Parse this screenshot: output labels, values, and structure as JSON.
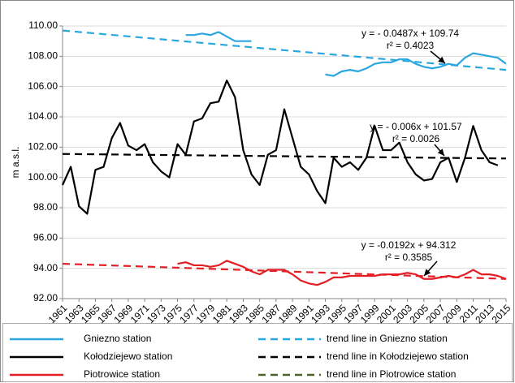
{
  "chart_data": {
    "type": "line",
    "y_label": "m a.s.l.",
    "x": [
      1961,
      1962,
      1963,
      1964,
      1965,
      1966,
      1967,
      1968,
      1969,
      1970,
      1971,
      1972,
      1973,
      1974,
      1975,
      1976,
      1977,
      1978,
      1979,
      1980,
      1981,
      1982,
      1983,
      1984,
      1985,
      1986,
      1987,
      1988,
      1989,
      1990,
      1991,
      1992,
      1993,
      1994,
      1995,
      1996,
      1997,
      1998,
      1999,
      2000,
      2001,
      2002,
      2003,
      2004,
      2005,
      2006,
      2007,
      2008,
      2009,
      2010,
      2011,
      2012,
      2013,
      2014,
      2015
    ],
    "xlim": [
      1961,
      2015
    ],
    "xticks": [
      1961,
      1963,
      1965,
      1967,
      1969,
      1971,
      1973,
      1975,
      1977,
      1979,
      1981,
      1983,
      1985,
      1987,
      1989,
      1991,
      1993,
      1995,
      1997,
      1999,
      2001,
      2003,
      2005,
      2007,
      2009,
      2011,
      2013,
      2015
    ],
    "ylim": [
      92,
      110
    ],
    "yticks": [
      {
        "value": 92,
        "label": "92.00"
      },
      {
        "value": 94,
        "label": "94.00"
      },
      {
        "value": 96,
        "label": "96.00"
      },
      {
        "value": 98,
        "label": "98.00"
      },
      {
        "value": 100,
        "label": "100.00"
      },
      {
        "value": 102,
        "label": "102.00"
      },
      {
        "value": 104,
        "label": "104.00"
      },
      {
        "value": 106,
        "label": "106.00"
      },
      {
        "value": 108,
        "label": "108.00"
      },
      {
        "value": 110,
        "label": "110.00"
      }
    ],
    "grid": true,
    "series": [
      {
        "name": "Gniezno station",
        "color": "#2aa7df",
        "values": [
          null,
          null,
          null,
          null,
          null,
          null,
          null,
          null,
          null,
          null,
          null,
          null,
          null,
          null,
          null,
          109.4,
          109.4,
          109.5,
          109.4,
          109.6,
          109.3,
          109.0,
          109.0,
          109.0,
          null,
          null,
          null,
          null,
          null,
          null,
          null,
          null,
          106.8,
          106.7,
          107.0,
          107.1,
          107.0,
          107.2,
          107.5,
          107.6,
          107.6,
          107.8,
          107.8,
          107.5,
          107.3,
          107.2,
          107.3,
          107.5,
          107.4,
          107.9,
          108.2,
          108.1,
          108.0,
          107.9,
          107.5
        ]
      },
      {
        "name": "Kołodziejewo station",
        "color": "#000000",
        "values": [
          99.5,
          100.7,
          98.1,
          97.6,
          100.5,
          100.7,
          102.6,
          103.6,
          102.1,
          101.8,
          102.2,
          101.0,
          100.4,
          100.0,
          102.2,
          101.5,
          103.7,
          103.9,
          104.9,
          105.0,
          106.4,
          105.3,
          101.8,
          100.2,
          99.5,
          101.5,
          101.8,
          104.5,
          102.6,
          100.7,
          100.2,
          99.1,
          98.3,
          101.3,
          100.7,
          101.0,
          100.5,
          101.3,
          103.4,
          101.8,
          101.8,
          102.3,
          101.0,
          100.2,
          99.8,
          99.9,
          101.0,
          101.3,
          99.7,
          101.3,
          103.4,
          101.8,
          101.0,
          100.8,
          null
        ]
      },
      {
        "name": "Piotrowice station",
        "color": "#e31e24",
        "values": [
          null,
          null,
          null,
          null,
          null,
          null,
          null,
          null,
          null,
          null,
          null,
          null,
          null,
          null,
          94.3,
          94.4,
          94.2,
          94.2,
          94.1,
          94.2,
          94.5,
          94.3,
          94.1,
          93.8,
          93.6,
          93.9,
          93.9,
          93.9,
          93.6,
          93.2,
          93.0,
          92.9,
          93.1,
          93.4,
          93.4,
          93.5,
          93.5,
          93.5,
          93.5,
          93.6,
          93.6,
          93.6,
          93.7,
          93.6,
          93.3,
          93.3,
          93.4,
          93.5,
          93.4,
          93.6,
          93.9,
          93.6,
          93.6,
          93.5,
          93.3
        ]
      }
    ],
    "trend_lines": [
      {
        "name": "trend line in Gniezno station",
        "color": "#2aa7df",
        "x": [
          1961,
          2015
        ],
        "values": [
          109.7,
          107.1
        ],
        "annotation": [
          "y = - 0.0487x + 109.74",
          "r² = 0.4023"
        ]
      },
      {
        "name": "trend line in Kołodziejewo station",
        "color": "#000000",
        "x": [
          1961,
          2015
        ],
        "values": [
          101.55,
          101.25
        ],
        "annotation": [
          "y = - 0.006x + 101.57",
          "r² = 0.0026"
        ]
      },
      {
        "name": "trend line in Piotrowice station",
        "color": "#e31e24",
        "legend_color": "#4f6228",
        "x": [
          1961,
          2015
        ],
        "values": [
          94.3,
          93.3
        ],
        "annotation": [
          "y = -0.0192x + 94.312",
          "r² = 0.3585"
        ]
      }
    ]
  }
}
